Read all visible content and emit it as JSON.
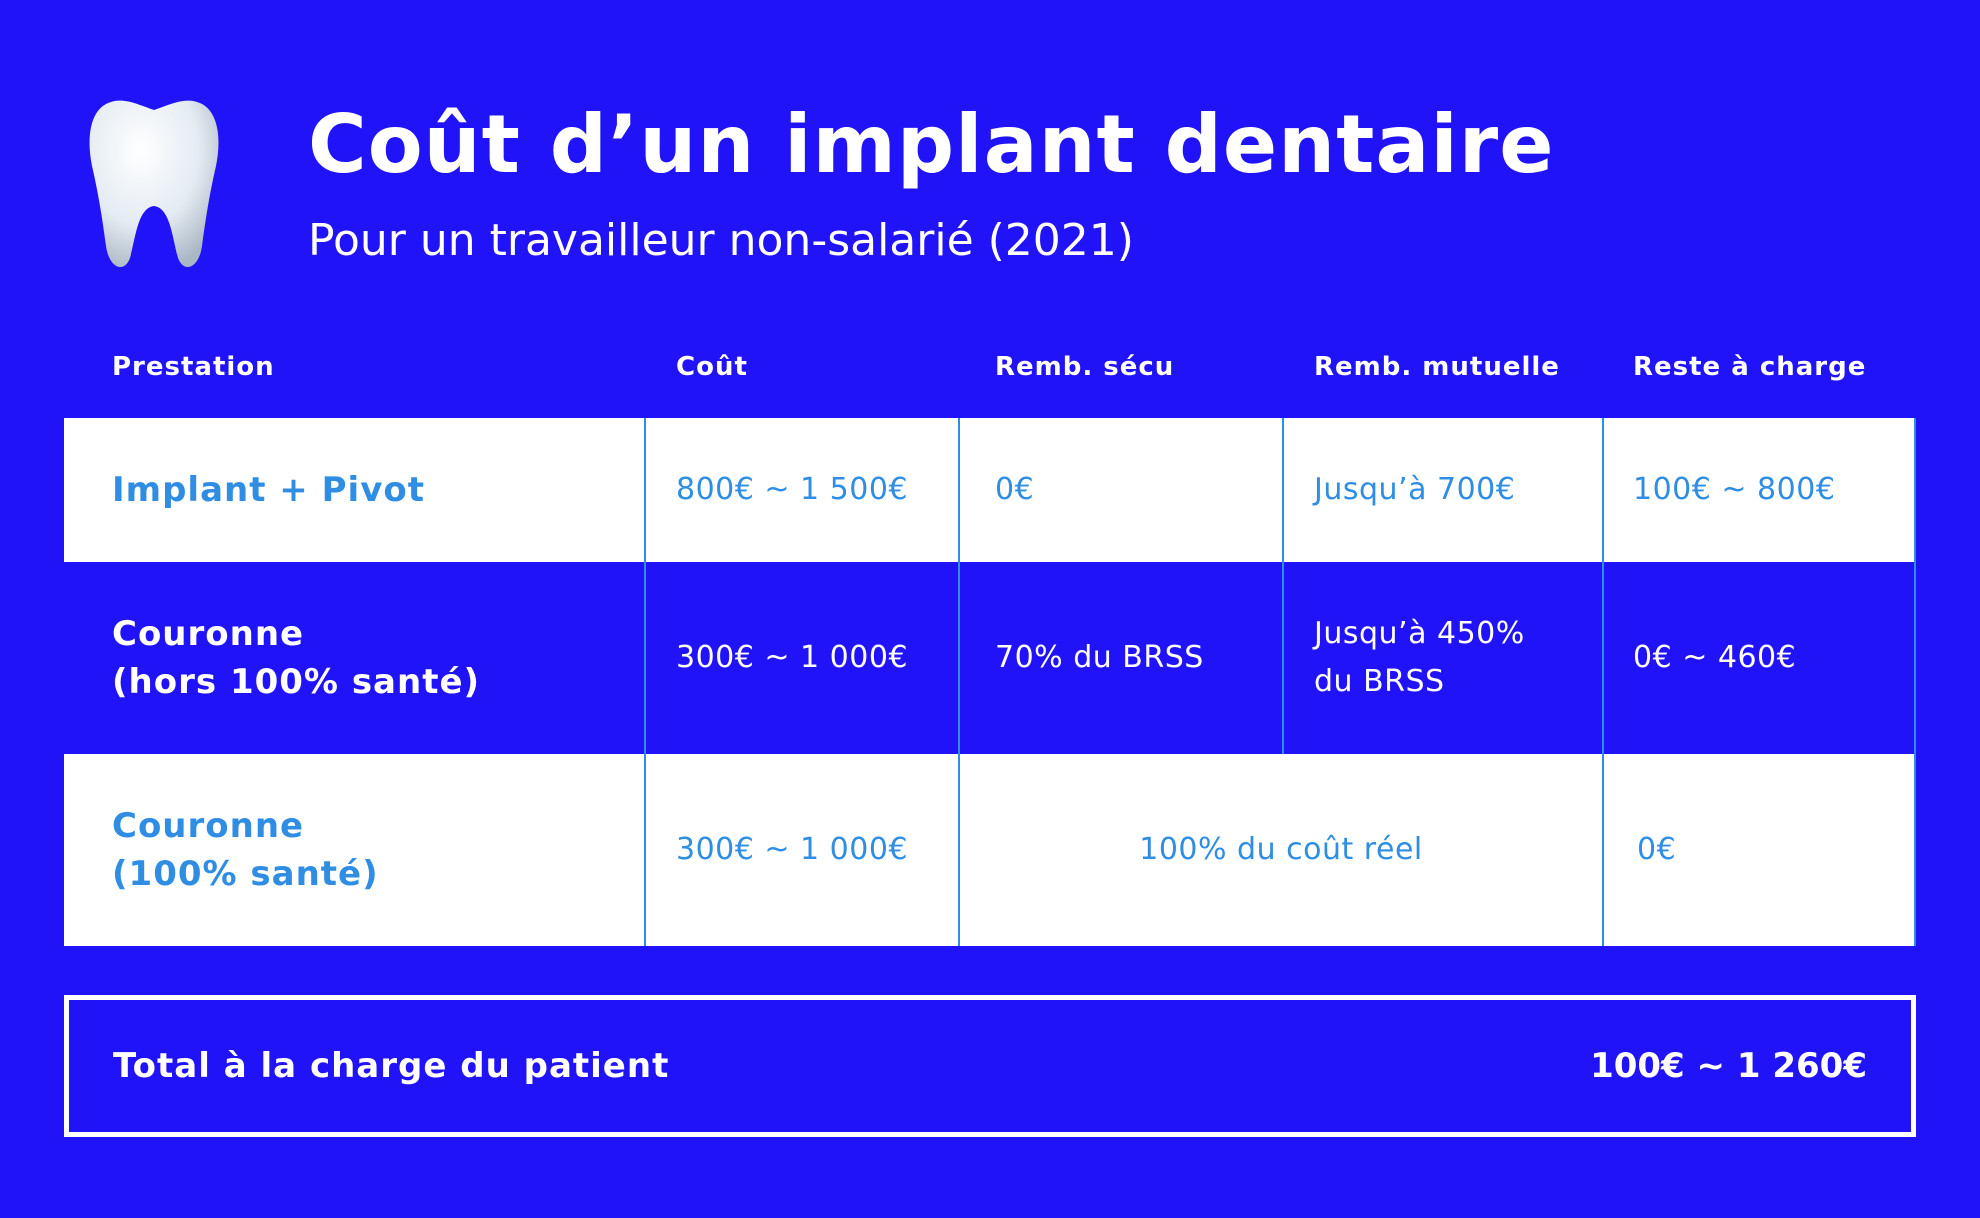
{
  "header": {
    "title": "Coût d’un implant dentaire",
    "subtitle": "Pour un travailleur non-salarié (2021)",
    "icon": "tooth-icon"
  },
  "table": {
    "columns": [
      "Prestation",
      "Coût",
      "Remb. sécu",
      "Remb. mutuelle",
      "Reste à charge"
    ],
    "rows": [
      {
        "prestation": [
          "Implant + Pivot"
        ],
        "cout": "800€ ~ 1 500€",
        "remb_secu": "0€",
        "remb_mutuelle": [
          "Jusqu’à 700€"
        ],
        "reste": "100€ ~ 800€"
      },
      {
        "prestation": [
          "Couronne",
          "(hors 100% santé)"
        ],
        "cout": "300€ ~ 1 000€",
        "remb_secu": "70% du BRSS",
        "remb_mutuelle": [
          "Jusqu’à 450%",
          "du BRSS"
        ],
        "reste": "0€ ~ 460€"
      },
      {
        "prestation": [
          "Couronne",
          "(100% santé)"
        ],
        "cout": "300€ ~ 1 000€",
        "remb_merged": "100% du coût réel",
        "reste": "0€"
      }
    ]
  },
  "total": {
    "label": "Total à la charge du patient",
    "value": "100€ ~ 1 260€"
  },
  "colors": {
    "background": "#2113f7",
    "accent": "#2f8ee3",
    "light_row": "#ffffff"
  }
}
